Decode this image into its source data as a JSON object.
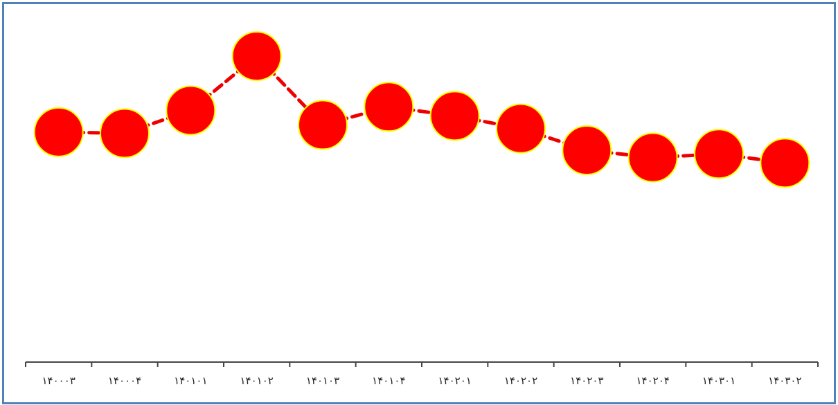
{
  "chart_data": {
    "type": "line",
    "categories": [
      "۱۴۰۰۰۳",
      "۱۴۰۰۰۴",
      "۱۴۰۱۰۱",
      "۱۴۰۱۰۲",
      "۱۴۰۱۰۳",
      "۱۴۰۱۰۴",
      "۱۴۰۲۰۱",
      "۱۴۰۲۰۲",
      "۱۴۰۲۰۳",
      "۱۴۰۲۰۴",
      "۱۴۰۳۰۱",
      "۱۴۰۳۰۲"
    ],
    "series": [
      {
        "values": [
          63.5,
          63.2,
          69.5,
          84.5,
          65.5,
          70.5,
          68.0,
          64.5,
          58.5,
          56.5,
          57.5,
          55.0
        ]
      }
    ],
    "title": "",
    "xlabel": "",
    "ylabel": "",
    "ylim": [
      0,
      100
    ],
    "y_axis_visible": false,
    "grid": false,
    "legend": "none",
    "colors": {
      "line": "#ee0000",
      "marker_fill": "#ff0000",
      "marker_stroke": "#ffff00",
      "axis": "#444444",
      "border": "#4f81bd"
    }
  }
}
